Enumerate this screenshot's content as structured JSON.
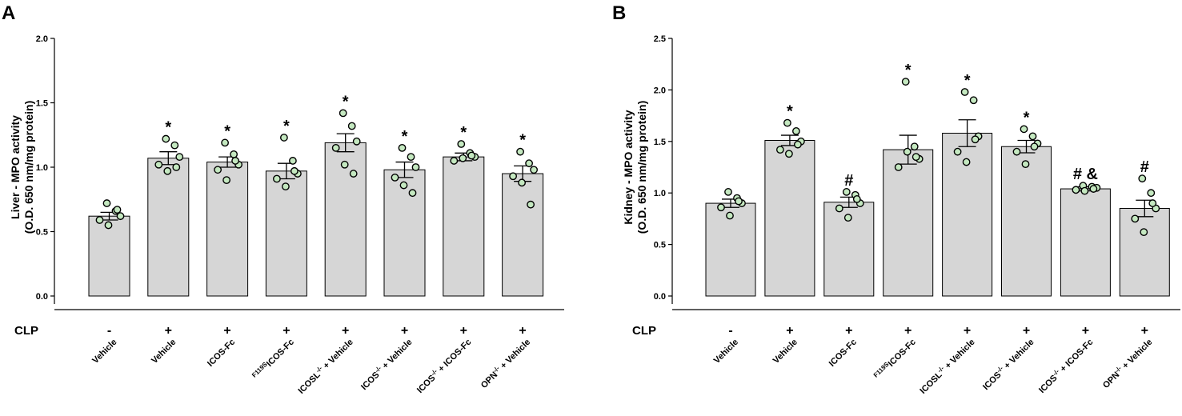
{
  "chart_data": [
    {
      "type": "bar",
      "panel": "A",
      "ylabel_lines": [
        "Liver - MPO activity",
        "(O.D. 650 nm/mg protein)"
      ],
      "ylim": [
        0,
        2.0
      ],
      "ytick_values": [
        0.0,
        0.5,
        1.0,
        1.5,
        2.0
      ],
      "ytick_labels": [
        "0.0",
        "0.5",
        "1.0",
        "1.5",
        "2.0"
      ],
      "row_label": "CLP",
      "categories": [
        {
          "sup": "",
          "text": "Vehicle",
          "post": ""
        },
        {
          "sup": "",
          "text": "Vehicle",
          "post": ""
        },
        {
          "sup": "",
          "text": "ICOS-Fc",
          "post": ""
        },
        {
          "sup": "F119S",
          "text": "ICOS-Fc",
          "post": ""
        },
        {
          "sup": "",
          "text": "ICOSL",
          "post": " + Vehicle",
          "exp": "-/-"
        },
        {
          "sup": "",
          "text": "ICOS",
          "post": " + Vehicle",
          "exp": "-/-"
        },
        {
          "sup": "",
          "text": "ICOS",
          "post": " + ICOS-Fc",
          "exp": "-/-"
        },
        {
          "sup": "",
          "text": "OPN",
          "post": " + Vehicle",
          "exp": "-/-"
        }
      ],
      "clp": [
        "-",
        "+",
        "+",
        "+",
        "+",
        "+",
        "+",
        "+"
      ],
      "values": [
        0.62,
        1.07,
        1.04,
        0.97,
        1.19,
        0.98,
        1.08,
        0.95
      ],
      "sem": [
        0.03,
        0.05,
        0.04,
        0.06,
        0.07,
        0.06,
        0.03,
        0.06
      ],
      "significance": [
        "",
        "*",
        "*",
        "*",
        "*",
        "*",
        "*",
        "*"
      ],
      "points": [
        [
          0.72,
          0.66,
          0.62,
          0.59,
          0.55,
          0.67
        ],
        [
          1.22,
          1.17,
          1.08,
          1.02,
          0.97,
          1.0
        ],
        [
          1.19,
          1.1,
          1.02,
          0.98,
          0.9,
          1.05
        ],
        [
          1.23,
          1.05,
          0.95,
          0.91,
          0.85,
          0.97
        ],
        [
          1.42,
          1.32,
          1.2,
          1.15,
          1.02,
          0.95
        ],
        [
          1.15,
          1.08,
          1.0,
          0.92,
          0.86,
          0.8
        ],
        [
          1.18,
          1.11,
          1.08,
          1.05,
          1.07,
          1.09
        ],
        [
          1.12,
          1.03,
          0.98,
          0.93,
          0.88,
          0.71
        ]
      ]
    },
    {
      "type": "bar",
      "panel": "B",
      "ylabel_lines": [
        "Kidney - MPO activity",
        "(O.D. 650 nm/mg protein)"
      ],
      "ylim": [
        0,
        2.5
      ],
      "ytick_values": [
        0.0,
        0.5,
        1.0,
        1.5,
        2.0,
        2.5
      ],
      "ytick_labels": [
        "0.0",
        "0.5",
        "1.0",
        "1.5",
        "2.0",
        "2.5"
      ],
      "row_label": "CLP",
      "categories": [
        {
          "sup": "",
          "text": "Vehicle",
          "post": ""
        },
        {
          "sup": "",
          "text": "Vehicle",
          "post": ""
        },
        {
          "sup": "",
          "text": "ICOS-Fc",
          "post": ""
        },
        {
          "sup": "F119S",
          "text": "ICOS-Fc",
          "post": ""
        },
        {
          "sup": "",
          "text": "ICOSL",
          "post": " + Vehicle",
          "exp": "-/-"
        },
        {
          "sup": "",
          "text": "ICOS",
          "post": " + Vehicle",
          "exp": "-/-"
        },
        {
          "sup": "",
          "text": "ICOS",
          "post": " + ICOS-Fc",
          "exp": "-/-"
        },
        {
          "sup": "",
          "text": "OPN",
          "post": " + Vehicle",
          "exp": "-/-"
        }
      ],
      "clp": [
        "-",
        "+",
        "+",
        "+",
        "+",
        "+",
        "+",
        "+"
      ],
      "values": [
        0.9,
        1.51,
        0.91,
        1.42,
        1.58,
        1.45,
        1.04,
        0.85
      ],
      "sem": [
        0.04,
        0.05,
        0.05,
        0.14,
        0.13,
        0.06,
        0.02,
        0.08
      ],
      "significance": [
        "",
        "*",
        "#",
        "*",
        "*",
        "*",
        "# &",
        "#"
      ],
      "points": [
        [
          1.01,
          0.95,
          0.9,
          0.86,
          0.78,
          0.92
        ],
        [
          1.68,
          1.6,
          1.5,
          1.42,
          1.38,
          1.47
        ],
        [
          1.01,
          0.98,
          0.9,
          0.85,
          0.76,
          0.94
        ],
        [
          2.08,
          1.45,
          1.33,
          1.25,
          1.4,
          1.35
        ],
        [
          1.98,
          1.9,
          1.55,
          1.4,
          1.3,
          1.52
        ],
        [
          1.62,
          1.55,
          1.48,
          1.4,
          1.28,
          1.45
        ],
        [
          1.07,
          1.06,
          1.05,
          1.03,
          1.02,
          1.04
        ],
        [
          1.14,
          1.0,
          0.85,
          0.75,
          0.62,
          0.9
        ]
      ]
    }
  ],
  "colors": {
    "bar_fill": "#d6d6d6",
    "bar_stroke": "#000000",
    "point_fill": "#c4e8c0",
    "point_stroke": "#000000"
  }
}
